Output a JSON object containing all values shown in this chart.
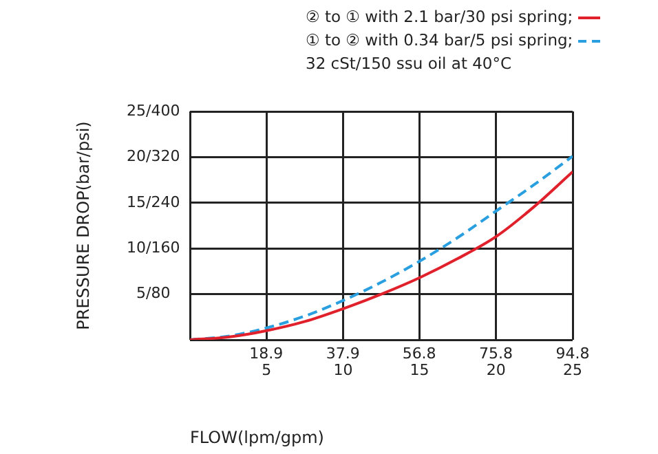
{
  "chart_data": {
    "type": "line",
    "subtitle": "32 cSt/150 ssu oil at 40°C",
    "xlabel": "FLOW(lpm/gpm)",
    "ylabel": "PRESSURE DROP(bar/psi)",
    "x": [
      0,
      2.5,
      5,
      7.5,
      10,
      12.5,
      15,
      17.5,
      20,
      22.5,
      25
    ],
    "series": [
      {
        "name": "② to ① with 2.1 bar/30 psi spring;",
        "color": "#e0202a",
        "line_style": "solid",
        "values": [
          0,
          0.3,
          1.0,
          2.0,
          3.4,
          5.0,
          6.8,
          8.9,
          11.3,
          14.6,
          18.4
        ]
      },
      {
        "name": "① to ② with 0.34 bar/5 psi spring;",
        "color": "#2a9fe0",
        "line_style": "dashed",
        "values": [
          0,
          0.4,
          1.3,
          2.6,
          4.3,
          6.3,
          8.6,
          11.2,
          14.1,
          17.0,
          20.1
        ]
      }
    ],
    "xlim": [
      0,
      25
    ],
    "xticks": [
      {
        "value": 0,
        "label": null
      },
      5,
      10,
      15,
      20,
      25
    ],
    "x2lim": [
      0,
      94.8
    ],
    "x2ticks": [
      18.9,
      37.9,
      56.8,
      75.8,
      94.8
    ],
    "ylim": [
      0,
      25
    ],
    "yticks": [
      {
        "value": 0,
        "label": null
      },
      5,
      10,
      15,
      20,
      25
    ],
    "y2lim": [
      0,
      400
    ],
    "y2ticks": [
      {
        "value": 80,
        "label": "/80"
      },
      {
        "value": 160,
        "label": "/160"
      },
      {
        "value": 240,
        "label": "/240"
      },
      {
        "value": 320,
        "label": "/320"
      },
      {
        "value": 400,
        "label": "/400"
      }
    ],
    "grid": true,
    "legend": "top",
    "marker": "none"
  }
}
